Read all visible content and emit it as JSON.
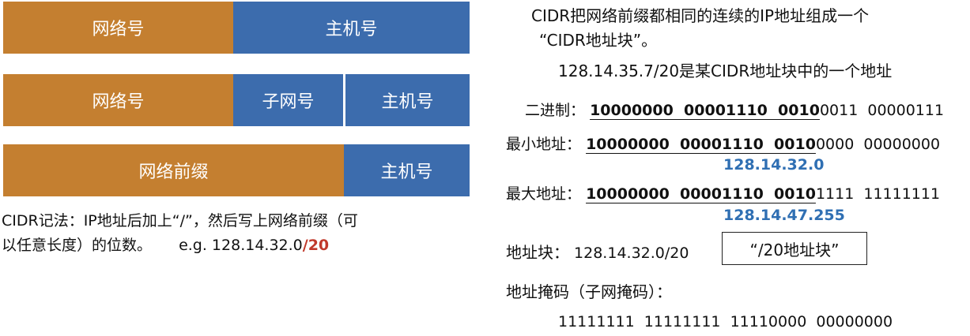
{
  "bars": {
    "bar1": {
      "network": "网络号",
      "host": "主机号"
    },
    "bar2": {
      "network": "网络号",
      "subnet": "子网号",
      "host": "主机号"
    },
    "bar3": {
      "prefix": "网络前缀",
      "host": "主机号"
    }
  },
  "left_text": {
    "line1": "CIDR记法：IP地址后加上“/”，然后写上网络前缀（可",
    "line2_a": "以任意长度）的位数。",
    "line2_eg": "e.g. 128.14.32.0",
    "line2_red": "/20"
  },
  "right": {
    "title_line1": "CIDR把网络前缀都相同的连续的IP地址组成一个",
    "title_line2": "“CIDR地址块”。",
    "example": "128.14.35.7/20是某CIDR地址块中的一个地址",
    "binary": {
      "label": "二进制：",
      "prefix": "10000000  00001110  0010",
      "rest": "0011  00000111"
    },
    "min": {
      "label": "最小地址：",
      "prefix": "10000000  00001110  0010",
      "rest": "0000  00000000",
      "decimal": "128.14.32.0"
    },
    "max": {
      "label": "最大地址：",
      "prefix": "10000000  00001110  0010",
      "rest": "1111  11111111",
      "decimal": "128.14.47.255"
    },
    "block": {
      "label": "地址块：",
      "value": "128.14.32.0/20",
      "boxed": "“/20地址块”"
    },
    "mask": {
      "label": "地址掩码（子网掩码）：",
      "value": "11111111  11111111  11110000  00000000"
    }
  }
}
